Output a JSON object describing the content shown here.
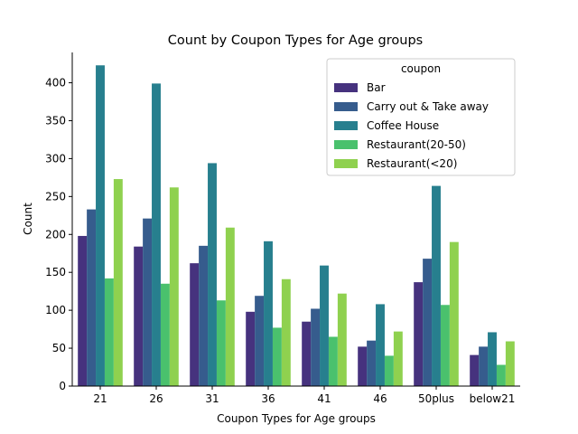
{
  "chart_data": {
    "type": "bar",
    "title": "Count by Coupon Types for Age groups",
    "xlabel": "Coupon Types for Age groups",
    "ylabel": "Count",
    "ylim": [
      0,
      440
    ],
    "yticks": [
      0,
      50,
      100,
      150,
      200,
      250,
      300,
      350,
      400
    ],
    "categories": [
      "21",
      "26",
      "31",
      "36",
      "41",
      "46",
      "50plus",
      "below21"
    ],
    "legend": {
      "title": "coupon",
      "position": "upper-right"
    },
    "grid": false,
    "series": [
      {
        "name": "Bar",
        "color": "#46327e",
        "values": [
          198,
          184,
          162,
          98,
          85,
          52,
          137,
          41
        ]
      },
      {
        "name": "Carry out & Take away",
        "color": "#365c8d",
        "values": [
          233,
          221,
          185,
          119,
          102,
          60,
          168,
          52
        ]
      },
      {
        "name": "Coffee House",
        "color": "#277f8e",
        "values": [
          423,
          399,
          294,
          191,
          159,
          108,
          264,
          71
        ]
      },
      {
        "name": "Restaurant(20-50)",
        "color": "#4ac16d",
        "values": [
          142,
          135,
          113,
          77,
          65,
          40,
          107,
          28
        ]
      },
      {
        "name": "Restaurant(<20)",
        "color": "#8fd14f",
        "values": [
          273,
          262,
          209,
          141,
          122,
          72,
          190,
          59
        ]
      }
    ]
  }
}
